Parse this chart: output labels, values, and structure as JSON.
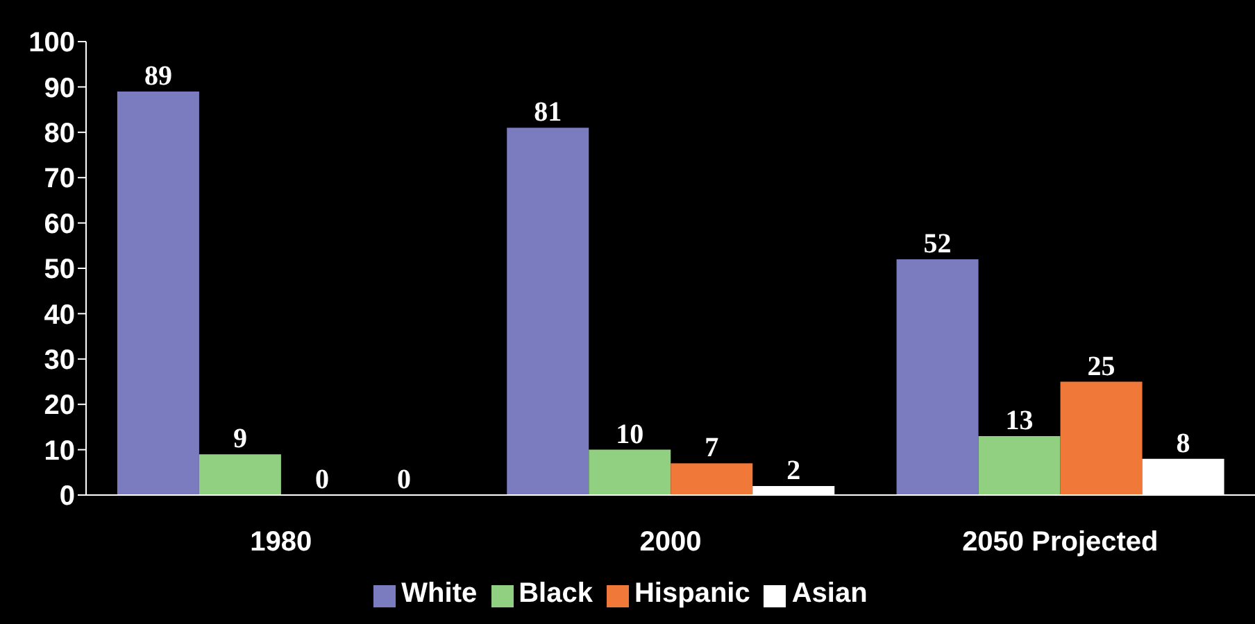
{
  "chart_data": {
    "type": "bar",
    "categories": [
      "1980",
      "2000",
      "2050  Projected"
    ],
    "series": [
      {
        "name": "White",
        "color": "#7b7bbf",
        "values": [
          89,
          81,
          52
        ]
      },
      {
        "name": "Black",
        "color": "#90d080",
        "values": [
          9,
          10,
          13
        ]
      },
      {
        "name": "Hispanic",
        "color": "#f07838",
        "values": [
          0,
          7,
          25
        ]
      },
      {
        "name": "Asian",
        "color": "#ffffff",
        "values": [
          0,
          2,
          8
        ]
      }
    ],
    "ylim": [
      0,
      100
    ],
    "yticks": [
      0,
      10,
      20,
      30,
      40,
      50,
      60,
      70,
      80,
      90,
      100
    ],
    "grid": false,
    "legend": "bottom",
    "data_labels": true
  }
}
